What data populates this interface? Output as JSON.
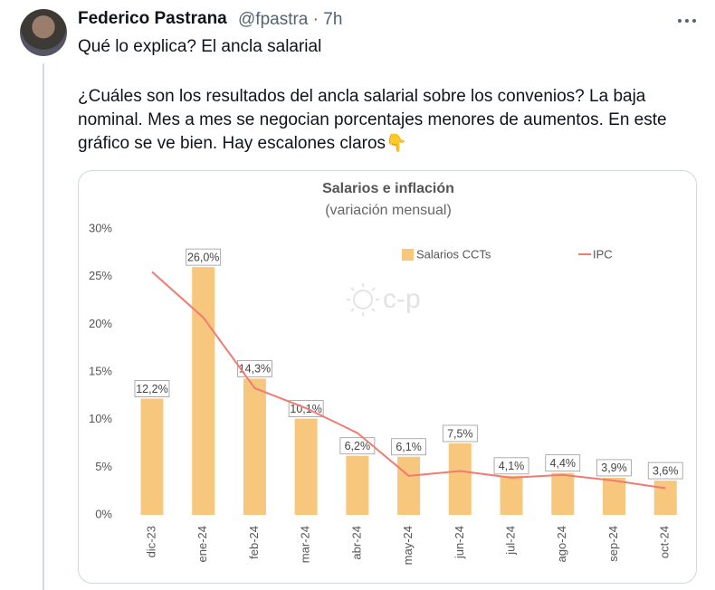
{
  "tweet": {
    "author": "Federico Pastrana",
    "meta": "@fpastra · 7h",
    "text": [
      "Qué lo explica? El ancla salarial",
      "¿Cuáles son los resultados del ancla salarial sobre los convenios? La baja nominal. Mes a mes se negocian porcentajes menores de aumentos. En este gráfico se ve bien. Hay escalones claros👇"
    ]
  },
  "chart_data": {
    "type": "bar",
    "title": "Salarios e inflación",
    "subtitle": "(variación mensual)",
    "watermark": "c-p",
    "categories": [
      "dic-23",
      "ene-24",
      "feb-24",
      "mar-24",
      "abr-24",
      "may-24",
      "jun-24",
      "jul-24",
      "ago-24",
      "sep-24",
      "oct-24"
    ],
    "series": [
      {
        "name": "Salarios CCTs",
        "type": "bar",
        "color": "#f8c77e",
        "values": [
          12.2,
          26.0,
          14.3,
          10.1,
          6.2,
          6.1,
          7.5,
          4.1,
          4.4,
          3.9,
          3.6
        ],
        "value_labels": [
          "12,2%",
          "26,0%",
          "14,3%",
          "10,1%",
          "6,2%",
          "6,1%",
          "7,5%",
          "4,1%",
          "4,4%",
          "3,9%",
          "3,6%"
        ]
      },
      {
        "name": "IPC",
        "type": "line",
        "color": "#f07b72",
        "values": [
          25.5,
          20.7,
          13.3,
          11.2,
          8.6,
          4.1,
          4.6,
          3.9,
          4.2,
          3.6,
          2.8
        ]
      }
    ],
    "ylim": [
      0,
      30
    ],
    "yticks": [
      {
        "value": 0,
        "label": "0%"
      },
      {
        "value": 5,
        "label": "5%"
      },
      {
        "value": 10,
        "label": "10%"
      },
      {
        "value": 15,
        "label": "15%"
      },
      {
        "value": 20,
        "label": "20%"
      },
      {
        "value": 25,
        "label": "25%"
      },
      {
        "value": 30,
        "label": "30%"
      }
    ],
    "grid": false,
    "legend": "top-right"
  }
}
